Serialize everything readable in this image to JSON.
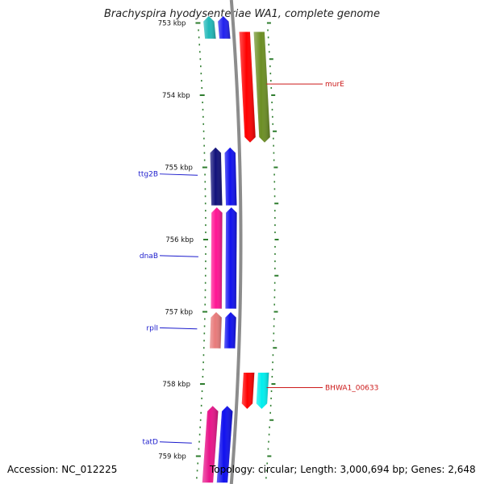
{
  "title": "Brachyspira hyodysenteriae WA1, complete genome",
  "footer": {
    "accession": "Accession: NC_012225",
    "topology": "Topology: circular; Length: 3,000,694 bp; Genes: 2,648"
  },
  "colors": {
    "tick": "#2e7d2e",
    "backbone": "#8c8c8c",
    "label_forward": "#1a1acc",
    "label_reverse": "#cc1a1a"
  },
  "scale": {
    "unit": "kbp",
    "visible_start_kbp": 753.02,
    "visible_end_kbp": 759.37,
    "label_ticks_kbp": [
      753,
      754,
      755,
      756,
      757,
      758,
      759
    ],
    "label_texts": [
      "753 kbp",
      "754 kbp",
      "755 kbp",
      "756 kbp",
      "757 kbp",
      "758 kbp",
      "759 kbp"
    ]
  },
  "features": [
    {
      "name": "",
      "strand": "+",
      "track": "outer-left",
      "start_kbp": 752.9,
      "end_kbp": 753.22,
      "color": "#1fb8b8"
    },
    {
      "name": "",
      "strand": "+",
      "track": "inner-left",
      "start_kbp": 752.9,
      "end_kbp": 753.22,
      "color": "#2020ee"
    },
    {
      "name": "murE",
      "strand": "-",
      "track": "inner-right",
      "start_kbp": 753.12,
      "end_kbp": 754.66,
      "color": "#ff0000",
      "label_side": "right"
    },
    {
      "name": "",
      "strand": "-",
      "track": "outer-right",
      "start_kbp": 753.12,
      "end_kbp": 754.66,
      "color": "#6b8e23"
    },
    {
      "name": "ttg2B",
      "strand": "+",
      "track": "outer-left",
      "start_kbp": 754.72,
      "end_kbp": 755.53,
      "color": "#10107a",
      "label_side": "left"
    },
    {
      "name": "",
      "strand": "+",
      "track": "inner-left",
      "start_kbp": 754.72,
      "end_kbp": 755.53,
      "color": "#1010ee"
    },
    {
      "name": "dnaB",
      "strand": "+",
      "track": "outer-left",
      "start_kbp": 755.55,
      "end_kbp": 756.96,
      "color": "#ff1493",
      "label_side": "left"
    },
    {
      "name": "",
      "strand": "+",
      "track": "inner-left",
      "start_kbp": 755.55,
      "end_kbp": 756.96,
      "color": "#1010ee"
    },
    {
      "name": "rplI",
      "strand": "+",
      "track": "outer-left",
      "start_kbp": 757.0,
      "end_kbp": 757.51,
      "color": "#e87a7a",
      "label_side": "left"
    },
    {
      "name": "",
      "strand": "+",
      "track": "inner-left",
      "start_kbp": 757.0,
      "end_kbp": 757.51,
      "color": "#1010ee"
    },
    {
      "name": "BHWA1_00633",
      "strand": "-",
      "track": "inner-right",
      "start_kbp": 757.84,
      "end_kbp": 758.35,
      "color": "#ff0000",
      "label_side": "right"
    },
    {
      "name": "",
      "strand": "-",
      "track": "outer-right",
      "start_kbp": 757.84,
      "end_kbp": 758.35,
      "color": "#00eeee"
    },
    {
      "name": "tatD",
      "strand": "+",
      "track": "outer-left",
      "start_kbp": 758.3,
      "end_kbp": 759.37,
      "color": "#e8148a",
      "label_side": "left"
    },
    {
      "name": "",
      "strand": "+",
      "track": "inner-left",
      "start_kbp": 758.3,
      "end_kbp": 759.37,
      "color": "#1010ee"
    }
  ]
}
